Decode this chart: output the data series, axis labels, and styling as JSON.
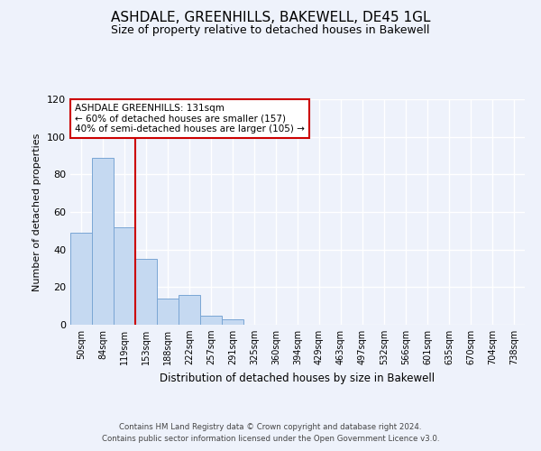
{
  "title": "ASHDALE, GREENHILLS, BAKEWELL, DE45 1GL",
  "subtitle": "Size of property relative to detached houses in Bakewell",
  "xlabel": "Distribution of detached houses by size in Bakewell",
  "ylabel": "Number of detached properties",
  "bin_labels": [
    "50sqm",
    "84sqm",
    "119sqm",
    "153sqm",
    "188sqm",
    "222sqm",
    "257sqm",
    "291sqm",
    "325sqm",
    "360sqm",
    "394sqm",
    "429sqm",
    "463sqm",
    "497sqm",
    "532sqm",
    "566sqm",
    "601sqm",
    "635sqm",
    "670sqm",
    "704sqm",
    "738sqm"
  ],
  "bar_heights": [
    49,
    89,
    52,
    35,
    14,
    16,
    5,
    3,
    0,
    0,
    0,
    0,
    0,
    0,
    0,
    0,
    0,
    0,
    0,
    0,
    0
  ],
  "bar_color": "#c5d9f1",
  "bar_edge_color": "#7aa6d4",
  "vline_color": "#cc0000",
  "ylim": [
    0,
    120
  ],
  "yticks": [
    0,
    20,
    40,
    60,
    80,
    100,
    120
  ],
  "annotation_title": "ASHDALE GREENHILLS: 131sqm",
  "annotation_line1": "← 60% of detached houses are smaller (157)",
  "annotation_line2": "40% of semi-detached houses are larger (105) →",
  "annotation_box_color": "#cc0000",
  "footer_line1": "Contains HM Land Registry data © Crown copyright and database right 2024.",
  "footer_line2": "Contains public sector information licensed under the Open Government Licence v3.0.",
  "background_color": "#eef2fb",
  "grid_color": "#ffffff",
  "title_fontsize": 11,
  "subtitle_fontsize": 9
}
